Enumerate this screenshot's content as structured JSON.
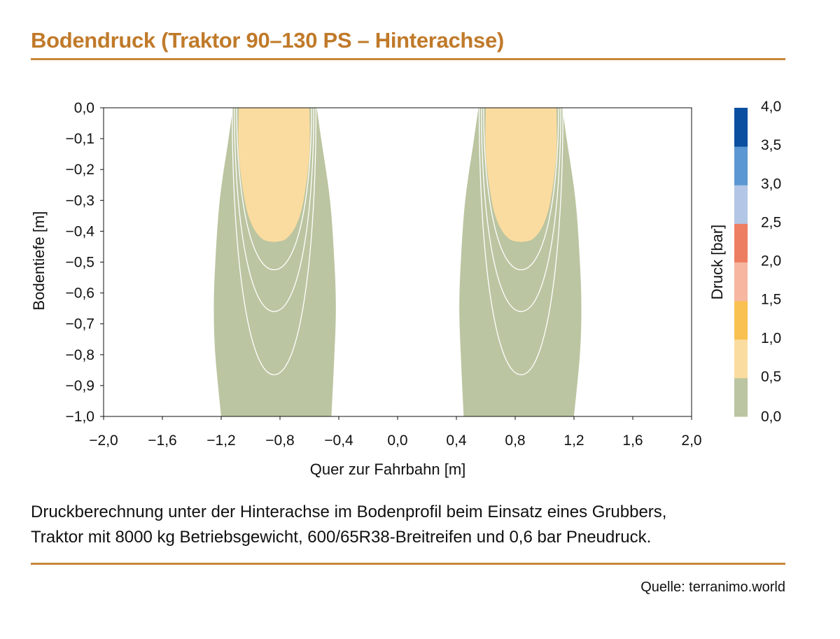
{
  "title": "Bodendruck (Traktor 90–130 PS – Hinterachse)",
  "caption": {
    "line1": "Druckberechnung unter der Hinterachse im Bodenprofil beim Einsatz eines Grubbers,",
    "line2": "Traktor mit 8000 kg Betriebsgewicht, 600/65R38-Breitreifen und 0,6 bar Pneudruck."
  },
  "source": "Quelle: terranimo.world",
  "chart_data": {
    "type": "heatmap",
    "title": "",
    "xlabel": "Quer zur Fahrbahn [m]",
    "ylabel": "Bodentiefe [m]",
    "xlim": [
      -2.0,
      2.0
    ],
    "ylim": [
      -1.0,
      0.0
    ],
    "xticks": [
      -2.0,
      -1.6,
      -1.2,
      -0.8,
      -0.4,
      0.0,
      0.4,
      0.8,
      1.2,
      1.6,
      2.0
    ],
    "xtick_labels": [
      "−2,0",
      "−1,6",
      "−1,2",
      "−0,8",
      "−0,4",
      "0,0",
      "0,4",
      "0,8",
      "1,2",
      "1,6",
      "2,0"
    ],
    "yticks": [
      0.0,
      -0.1,
      -0.2,
      -0.3,
      -0.4,
      -0.5,
      -0.6,
      -0.7,
      -0.8,
      -0.9,
      -1.0
    ],
    "ytick_labels": [
      "0,0",
      "−0,1",
      "−0,2",
      "−0,3",
      "−0,4",
      "−0,5",
      "−0,6",
      "−0,7",
      "−0,8",
      "−0,9",
      "−1,0"
    ],
    "grid": false,
    "colorbar": {
      "label": "Druck [bar]",
      "ticks": [
        0.0,
        0.5,
        1.0,
        1.5,
        2.0,
        2.5,
        3.0,
        3.5,
        4.0
      ],
      "tick_labels": [
        "0,0",
        "0,5",
        "1,0",
        "1,5",
        "2,0",
        "2,5",
        "3,0",
        "3,5",
        "4,0"
      ],
      "colors": [
        "#bbc5a1",
        "#fbdca0",
        "#f9c052",
        "#f7b6a0",
        "#ee7e62",
        "#b3c6e6",
        "#5b97d2",
        "#0b4fa0"
      ]
    },
    "wheels": [
      {
        "center": -0.84,
        "zones": [
          {
            "level": 0.0,
            "color": "#bbc5a1",
            "left": [
              [
                -1.12,
                0.0
              ],
              [
                -1.15,
                -0.1
              ],
              [
                -1.21,
                -0.3
              ],
              [
                -1.24,
                -0.5
              ],
              [
                -1.25,
                -0.65
              ],
              [
                -1.24,
                -0.8
              ],
              [
                -1.2,
                -1.0
              ]
            ],
            "right": [
              [
                -0.55,
                0.0
              ],
              [
                -0.52,
                -0.1
              ],
              [
                -0.46,
                -0.3
              ],
              [
                -0.43,
                -0.5
              ],
              [
                -0.42,
                -0.65
              ],
              [
                -0.43,
                -0.8
              ],
              [
                -0.45,
                -1.0
              ]
            ]
          },
          {
            "level": 0.5,
            "color": "#fbdca0",
            "left": [
              [
                -1.08,
                0.0
              ],
              [
                -1.08,
                -0.15
              ],
              [
                -1.04,
                -0.3
              ],
              [
                -0.99,
                -0.38
              ],
              [
                -0.92,
                -0.425
              ]
            ],
            "right": [
              [
                -0.6,
                0.0
              ],
              [
                -0.6,
                -0.15
              ],
              [
                -0.64,
                -0.3
              ],
              [
                -0.69,
                -0.38
              ],
              [
                -0.76,
                -0.425
              ]
            ],
            "depth": -0.435
          }
        ],
        "isobars": [
          {
            "level": 0.4,
            "left_top": -1.095,
            "right_top": -0.585,
            "depth": -0.525
          },
          {
            "level": 0.3,
            "left_top": -1.11,
            "right_top": -0.57,
            "depth": -0.66
          },
          {
            "level": 0.2,
            "left_top": -1.125,
            "right_top": -0.555,
            "depth": -0.865
          }
        ]
      },
      {
        "center": 0.84,
        "zones": [
          {
            "level": 0.0,
            "color": "#bbc5a1",
            "left": [
              [
                0.55,
                0.0
              ],
              [
                0.52,
                -0.1
              ],
              [
                0.46,
                -0.3
              ],
              [
                0.43,
                -0.5
              ],
              [
                0.42,
                -0.65
              ],
              [
                0.43,
                -0.8
              ],
              [
                0.45,
                -1.0
              ]
            ],
            "right": [
              [
                1.12,
                0.0
              ],
              [
                1.15,
                -0.1
              ],
              [
                1.21,
                -0.3
              ],
              [
                1.24,
                -0.5
              ],
              [
                1.25,
                -0.65
              ],
              [
                1.24,
                -0.8
              ],
              [
                1.2,
                -1.0
              ]
            ]
          },
          {
            "level": 0.5,
            "color": "#fbdca0",
            "left": [
              [
                0.6,
                0.0
              ],
              [
                0.6,
                -0.15
              ],
              [
                0.64,
                -0.3
              ],
              [
                0.69,
                -0.38
              ],
              [
                0.76,
                -0.425
              ]
            ],
            "right": [
              [
                1.08,
                0.0
              ],
              [
                1.08,
                -0.15
              ],
              [
                1.04,
                -0.3
              ],
              [
                0.99,
                -0.38
              ],
              [
                0.92,
                -0.425
              ]
            ],
            "depth": -0.435
          }
        ],
        "isobars": [
          {
            "level": 0.4,
            "left_top": 0.585,
            "right_top": 1.095,
            "depth": -0.525
          },
          {
            "level": 0.3,
            "left_top": 0.57,
            "right_top": 1.11,
            "depth": -0.66
          },
          {
            "level": 0.2,
            "left_top": 0.555,
            "right_top": 1.125,
            "depth": -0.865
          }
        ]
      }
    ]
  }
}
